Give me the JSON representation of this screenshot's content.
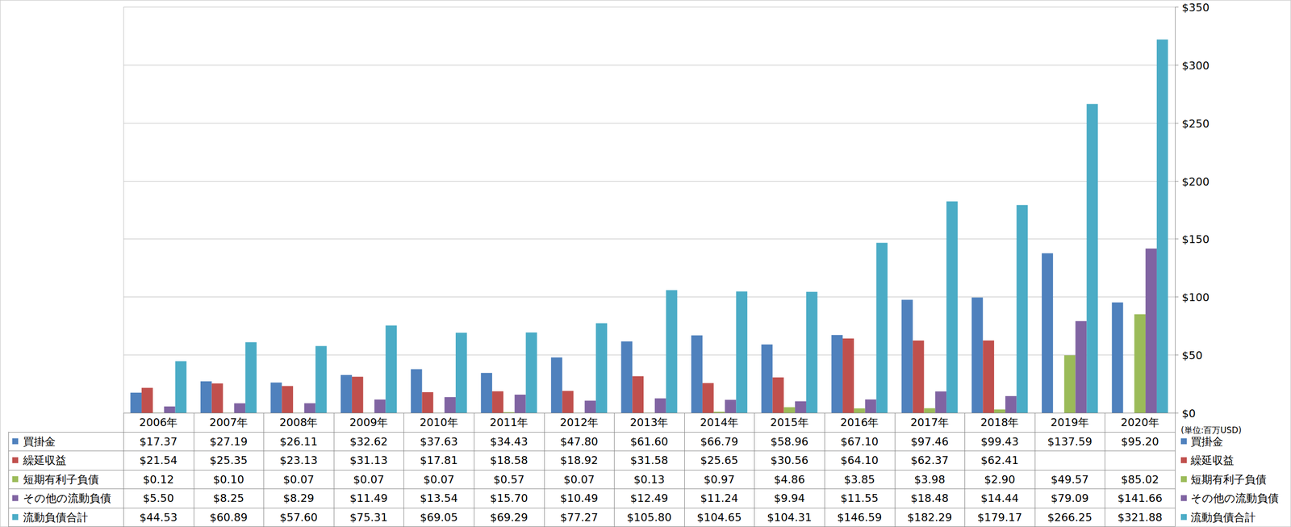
{
  "chart_data": {
    "type": "bar",
    "y_label": "(単位:百万USD)",
    "categories": [
      "2006年",
      "2007年",
      "2008年",
      "2009年",
      "2010年",
      "2011年",
      "2012年",
      "2013年",
      "2014年",
      "2015年",
      "2016年",
      "2017年",
      "2018年",
      "2019年",
      "2020年"
    ],
    "ylim": [
      0,
      350
    ],
    "yticks": [
      {
        "value": 0,
        "label": "$0"
      },
      {
        "value": 50,
        "label": "$50"
      },
      {
        "value": 100,
        "label": "$100"
      },
      {
        "value": 150,
        "label": "$150"
      },
      {
        "value": 200,
        "label": "$200"
      },
      {
        "value": 250,
        "label": "$250"
      },
      {
        "value": 300,
        "label": "$300"
      },
      {
        "value": 350,
        "label": "$350"
      }
    ],
    "grid": true,
    "legend": "right",
    "series": [
      {
        "name": "買掛金",
        "color": "#4f81bd",
        "values": [
          17.37,
          27.19,
          26.11,
          32.62,
          37.63,
          34.43,
          47.8,
          61.6,
          66.79,
          58.96,
          67.1,
          97.46,
          99.43,
          137.59,
          95.2
        ],
        "value_labels": [
          "$17.37",
          "$27.19",
          "$26.11",
          "$32.62",
          "$37.63",
          "$34.43",
          "$47.80",
          "$61.60",
          "$66.79",
          "$58.96",
          "$67.10",
          "$97.46",
          "$99.43",
          "$137.59",
          "$95.20"
        ]
      },
      {
        "name": "繰延収益",
        "color": "#c0504d",
        "values": [
          21.54,
          25.35,
          23.13,
          31.13,
          17.81,
          18.58,
          18.92,
          31.58,
          25.65,
          30.56,
          64.1,
          62.37,
          62.41,
          null,
          null
        ],
        "value_labels": [
          "$21.54",
          "$25.35",
          "$23.13",
          "$31.13",
          "$17.81",
          "$18.58",
          "$18.92",
          "$31.58",
          "$25.65",
          "$30.56",
          "$64.10",
          "$62.37",
          "$62.41",
          null,
          null
        ]
      },
      {
        "name": "短期有利子負債",
        "color": "#9bbb59",
        "values": [
          0.12,
          0.1,
          0.07,
          0.07,
          0.07,
          0.57,
          0.07,
          0.13,
          0.97,
          4.86,
          3.85,
          3.98,
          2.9,
          49.57,
          85.02
        ],
        "value_labels": [
          "$0.12",
          "$0.10",
          "$0.07",
          "$0.07",
          "$0.07",
          "$0.57",
          "$0.07",
          "$0.13",
          "$0.97",
          "$4.86",
          "$3.85",
          "$3.98",
          "$2.90",
          "$49.57",
          "$85.02"
        ]
      },
      {
        "name": "その他の流動負債",
        "color": "#8064a2",
        "values": [
          5.5,
          8.25,
          8.29,
          11.49,
          13.54,
          15.7,
          10.49,
          12.49,
          11.24,
          9.94,
          11.55,
          18.48,
          14.44,
          79.09,
          141.66
        ],
        "value_labels": [
          "$5.50",
          "$8.25",
          "$8.29",
          "$11.49",
          "$13.54",
          "$15.70",
          "$10.49",
          "$12.49",
          "$11.24",
          "$9.94",
          "$11.55",
          "$18.48",
          "$14.44",
          "$79.09",
          "$141.66"
        ]
      },
      {
        "name": "流動負債合計",
        "color": "#4bacc6",
        "values": [
          44.53,
          60.89,
          57.6,
          75.31,
          69.05,
          69.29,
          77.27,
          105.8,
          104.65,
          104.31,
          146.59,
          182.29,
          179.17,
          266.25,
          321.88
        ],
        "value_labels": [
          "$44.53",
          "$60.89",
          "$57.60",
          "$75.31",
          "$69.05",
          "$69.29",
          "$77.27",
          "$105.80",
          "$104.65",
          "$104.31",
          "$146.59",
          "$182.29",
          "$179.17",
          "$266.25",
          "$321.88"
        ]
      }
    ]
  }
}
